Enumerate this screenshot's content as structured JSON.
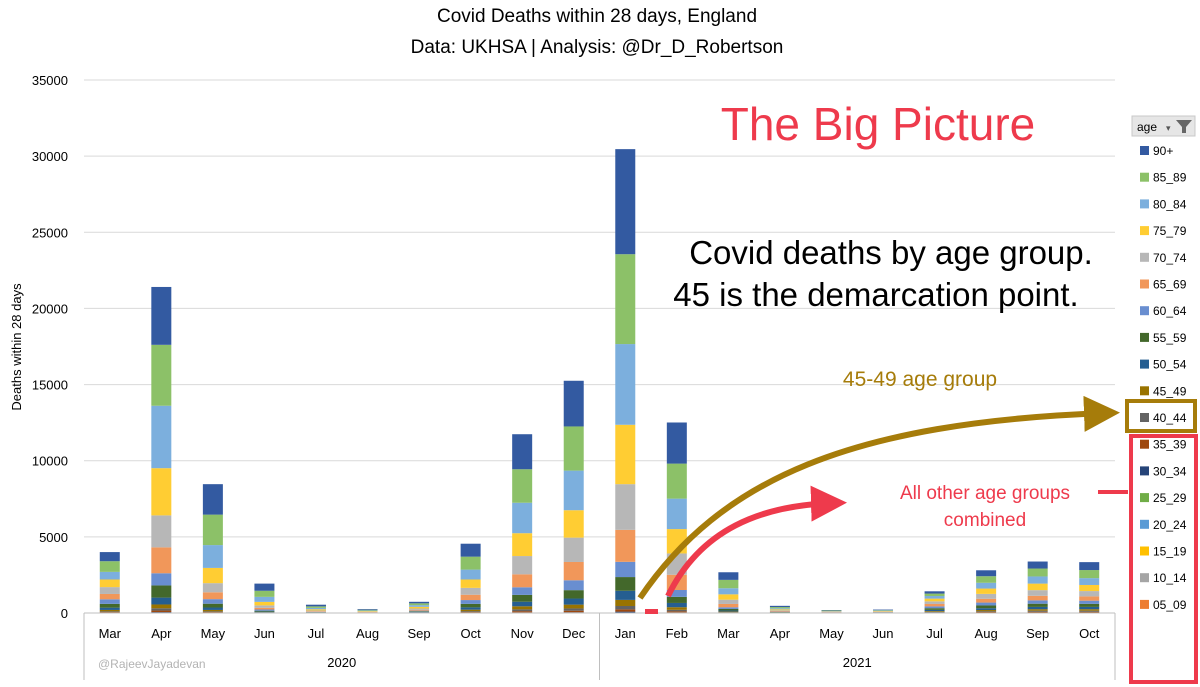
{
  "title": "Covid Deaths within 28 days, England",
  "subtitle": "Data: UKHSA | Analysis: @Dr_D_Robertson",
  "legend_header": "age",
  "annotation_big": "The Big Picture",
  "annotation_note_line1": "Covid deaths by age group.",
  "annotation_note_line2": "45 is the demarcation point.",
  "annotation_45_49": "45-49 age group",
  "annotation_other_line1": "All other age groups",
  "annotation_other_line2": "combined",
  "credit": "@RajeevJayadevan",
  "colors": {
    "title_red": "#ee3a4c",
    "gold": "#a67c0a",
    "grid": "#d9d9d9"
  },
  "chart_data": {
    "type": "bar",
    "stacked": true,
    "ylabel": "Deaths within 28 days",
    "ylim": [
      0,
      35000
    ],
    "yticks": [
      0,
      5000,
      10000,
      15000,
      20000,
      25000,
      30000,
      35000
    ],
    "grid": true,
    "legend_position": "right",
    "categories": [
      "Mar",
      "Apr",
      "May",
      "Jun",
      "Jul",
      "Aug",
      "Sep",
      "Oct",
      "Nov",
      "Dec",
      "Jan",
      "Feb",
      "Mar",
      "Apr",
      "May",
      "Jun",
      "Jul",
      "Aug",
      "Sep",
      "Oct"
    ],
    "year_groups": [
      {
        "label": "2020",
        "count": 10
      },
      {
        "label": "2021",
        "count": 10
      }
    ],
    "series": [
      {
        "name": "05_09",
        "color": "#ed7d31",
        "values": [
          0,
          0,
          0,
          0,
          0,
          0,
          0,
          0,
          0,
          0,
          0,
          0,
          0,
          0,
          0,
          0,
          0,
          0,
          0,
          0
        ]
      },
      {
        "name": "10_14",
        "color": "#a5a5a5",
        "values": [
          0,
          0,
          0,
          0,
          0,
          0,
          0,
          0,
          0,
          0,
          0,
          0,
          0,
          0,
          0,
          0,
          0,
          0,
          0,
          0
        ]
      },
      {
        "name": "15_19",
        "color": "#ffc000",
        "values": [
          0,
          0,
          0,
          0,
          0,
          0,
          0,
          0,
          0,
          0,
          0,
          0,
          0,
          0,
          0,
          0,
          0,
          0,
          0,
          0
        ]
      },
      {
        "name": "20_24",
        "color": "#5b9bd5",
        "values": [
          0,
          0,
          0,
          0,
          0,
          0,
          0,
          0,
          0,
          0,
          0,
          0,
          0,
          0,
          0,
          0,
          0,
          0,
          0,
          0
        ]
      },
      {
        "name": "25_29",
        "color": "#70ad47",
        "values": [
          0,
          0,
          0,
          0,
          0,
          0,
          0,
          0,
          0,
          0,
          0,
          0,
          0,
          0,
          0,
          0,
          0,
          0,
          0,
          0
        ]
      },
      {
        "name": "30_34",
        "color": "#264478",
        "values": [
          20,
          60,
          20,
          5,
          0,
          0,
          5,
          20,
          40,
          50,
          90,
          40,
          10,
          5,
          0,
          5,
          15,
          25,
          30,
          30
        ]
      },
      {
        "name": "35_39",
        "color": "#9e480e",
        "values": [
          40,
          100,
          40,
          10,
          5,
          0,
          10,
          40,
          80,
          100,
          150,
          70,
          20,
          5,
          5,
          5,
          25,
          40,
          50,
          50
        ]
      },
      {
        "name": "40_44",
        "color": "#636363",
        "values": [
          50,
          150,
          50,
          15,
          5,
          5,
          10,
          60,
          120,
          150,
          220,
          100,
          25,
          10,
          5,
          5,
          35,
          50,
          70,
          70
        ]
      },
      {
        "name": "45_49",
        "color": "#997300",
        "values": [
          90,
          250,
          90,
          20,
          10,
          5,
          20,
          100,
          200,
          250,
          400,
          170,
          40,
          10,
          5,
          5,
          50,
          80,
          100,
          100
        ]
      },
      {
        "name": "50_54",
        "color": "#255e91",
        "values": [
          150,
          450,
          160,
          40,
          15,
          10,
          30,
          150,
          300,
          400,
          600,
          280,
          70,
          15,
          10,
          10,
          80,
          120,
          150,
          150
        ]
      },
      {
        "name": "55_59",
        "color": "#43682b",
        "values": [
          250,
          800,
          250,
          60,
          20,
          10,
          40,
          230,
          450,
          550,
          900,
          400,
          100,
          20,
          10,
          15,
          110,
          180,
          210,
          200
        ]
      },
      {
        "name": "60_64",
        "color": "#698ed0",
        "values": [
          300,
          800,
          300,
          80,
          20,
          10,
          40,
          250,
          500,
          650,
          1000,
          450,
          110,
          25,
          10,
          15,
          120,
          190,
          220,
          210
        ]
      },
      {
        "name": "65_69",
        "color": "#f1975a",
        "values": [
          350,
          1700,
          450,
          110,
          40,
          20,
          60,
          350,
          850,
          1200,
          2100,
          1000,
          220,
          40,
          15,
          20,
          160,
          250,
          300,
          280
        ]
      },
      {
        "name": "70_74",
        "color": "#b7b7b7",
        "values": [
          450,
          2100,
          600,
          160,
          50,
          25,
          80,
          450,
          1200,
          1600,
          3000,
          1400,
          280,
          50,
          20,
          25,
          170,
          320,
          370,
          350
        ]
      },
      {
        "name": "75_79",
        "color": "#ffcd33",
        "values": [
          500,
          3100,
          1000,
          230,
          80,
          40,
          110,
          550,
          1500,
          1800,
          3900,
          1600,
          350,
          60,
          25,
          30,
          180,
          350,
          430,
          400
        ]
      },
      {
        "name": "80_84",
        "color": "#7cafdd",
        "values": [
          500,
          4100,
          1500,
          330,
          90,
          40,
          110,
          650,
          2000,
          2600,
          5300,
          2000,
          400,
          70,
          30,
          30,
          170,
          380,
          470,
          450
        ]
      },
      {
        "name": "85_89",
        "color": "#8cc168",
        "values": [
          700,
          4000,
          2000,
          400,
          100,
          50,
          120,
          850,
          2200,
          2900,
          5900,
          2300,
          550,
          80,
          30,
          30,
          160,
          430,
          520,
          530
        ]
      },
      {
        "name": "90+",
        "color": "#335aa1",
        "values": [
          600,
          3800,
          2000,
          470,
          110,
          45,
          100,
          850,
          2300,
          3000,
          6900,
          2700,
          500,
          80,
          30,
          30,
          150,
          390,
          460,
          520
        ]
      }
    ]
  }
}
